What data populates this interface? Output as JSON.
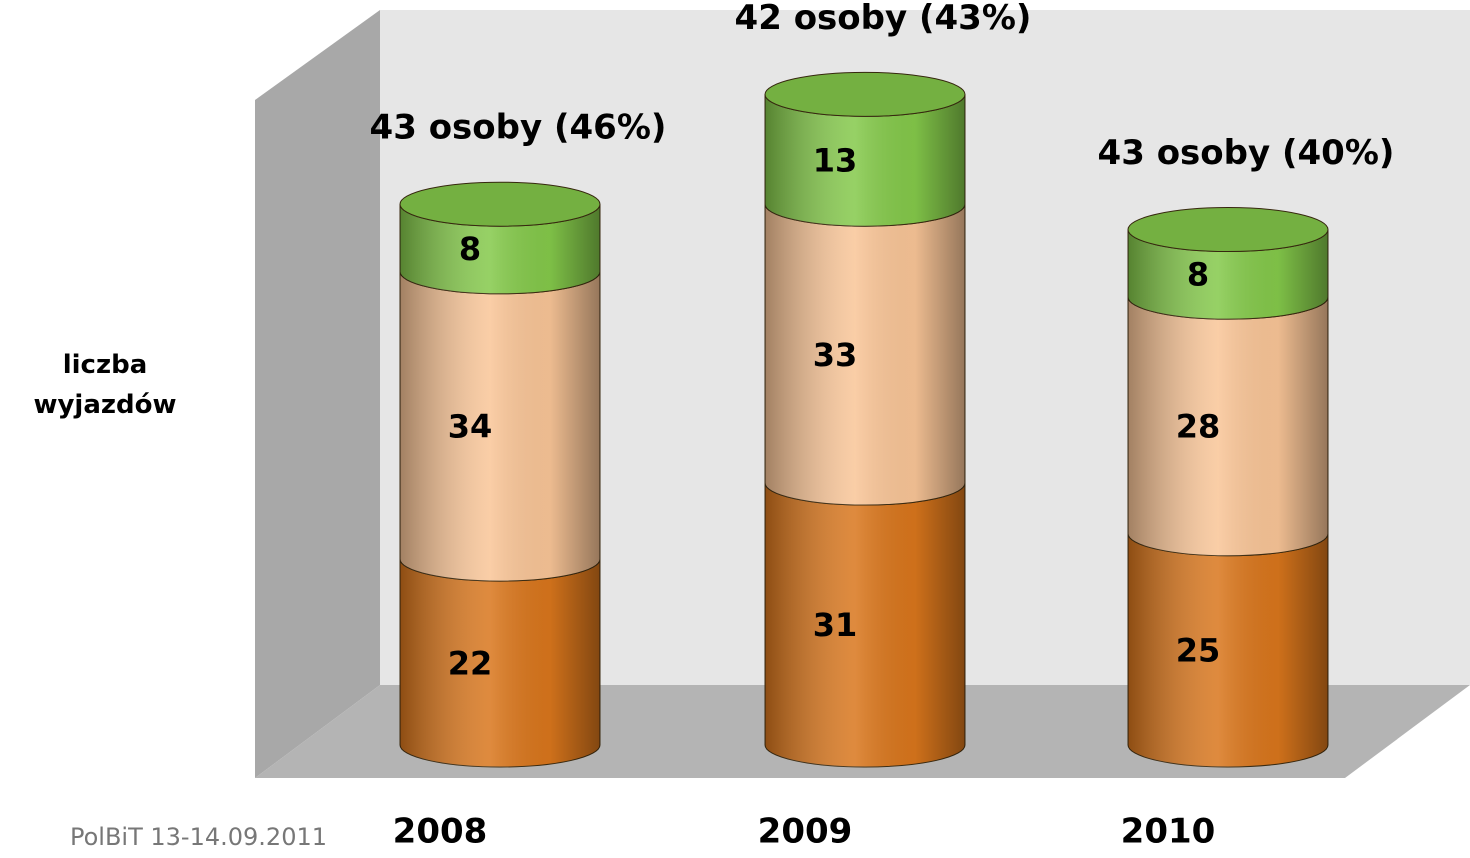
{
  "chart_data": {
    "type": "bar",
    "stacked": true,
    "ylabel": "liczba wyjazdów",
    "categories": [
      "2008",
      "2009",
      "2010"
    ],
    "series": [
      {
        "color": "#d9761c",
        "values": [
          22,
          31,
          25
        ]
      },
      {
        "color": "#f9c597",
        "values": [
          34,
          33,
          28
        ]
      },
      {
        "color": "#84c94a",
        "values": [
          8,
          13,
          8
        ]
      }
    ],
    "annotations": [
      "43 osoby (46%)",
      "42 osoby (43%)",
      "43 osoby (40%)"
    ],
    "footer": "PolBiT 13-14.09.2011"
  }
}
